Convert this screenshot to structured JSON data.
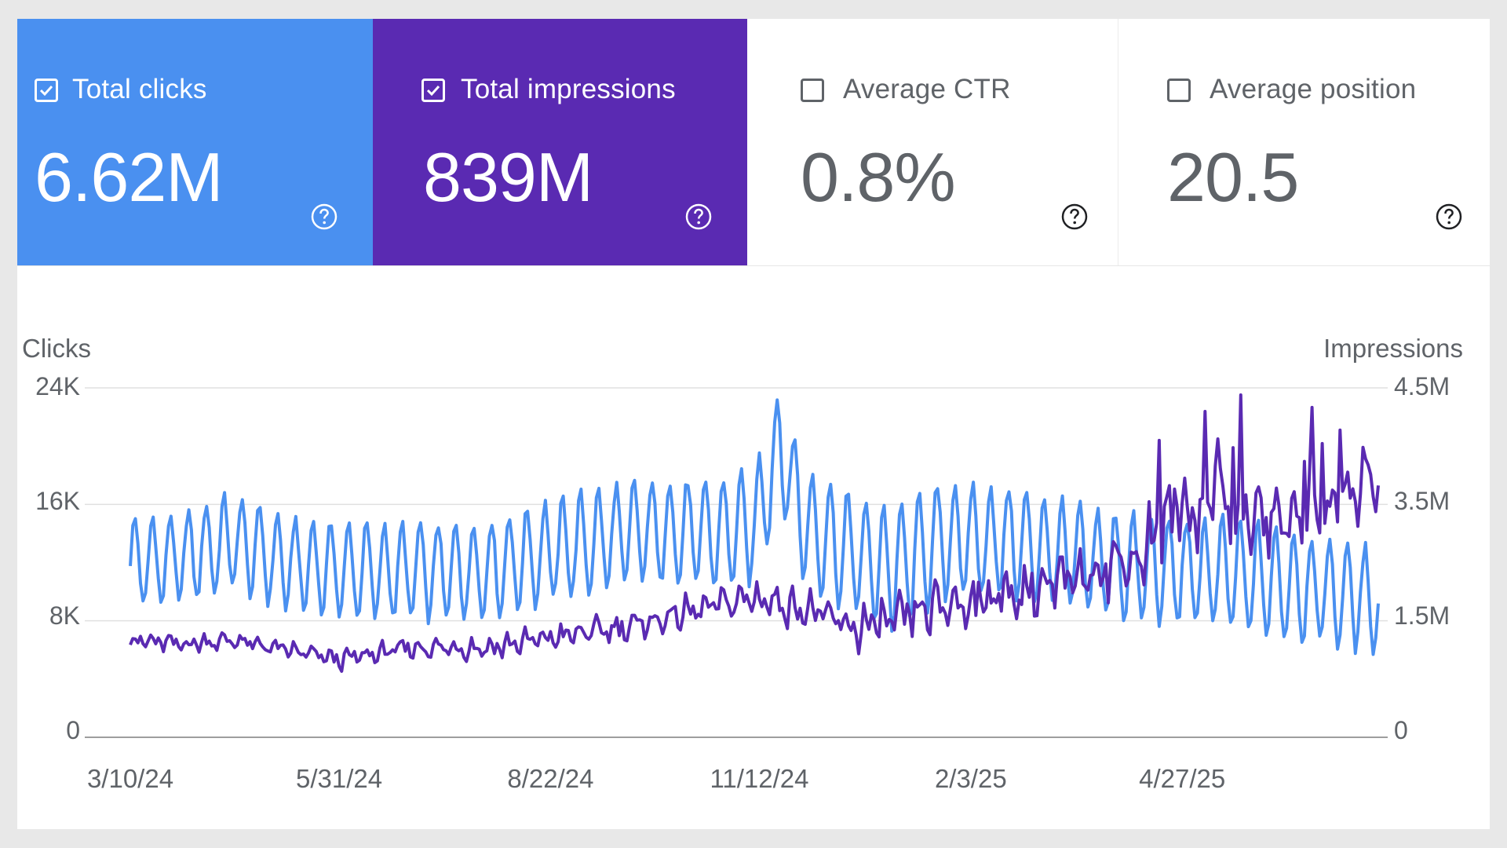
{
  "colors": {
    "clicks": "#4a90f0",
    "impressions": "#5a2ab2",
    "inactive_text": "#5f6368",
    "gridline": "#e0e0e0",
    "baseline": "#9e9e9e"
  },
  "cards": [
    {
      "label": "Total clicks",
      "value": "6.62M",
      "checked": true,
      "icon": "help-icon"
    },
    {
      "label": "Total impressions",
      "value": "839M",
      "checked": true,
      "icon": "help-icon"
    },
    {
      "label": "Average CTR",
      "value": "0.8%",
      "checked": false,
      "icon": "help-icon"
    },
    {
      "label": "Average position",
      "value": "20.5",
      "checked": false,
      "icon": "help-icon"
    }
  ],
  "chart_data": {
    "type": "line",
    "left_axis_title": "Clicks",
    "right_axis_title": "Impressions",
    "left_ticks": [
      "24K",
      "16K",
      "8K",
      "0"
    ],
    "right_ticks": [
      "4.5M",
      "3.5M",
      "1.5M",
      "0"
    ],
    "ylim_left": [
      0,
      24000
    ],
    "ylim_right": [
      0,
      4500000
    ],
    "x_tick_labels": [
      "3/10/24",
      "5/31/24",
      "8/22/24",
      "11/12/24",
      "2/3/25",
      "4/27/25"
    ],
    "x_tick_days": [
      0,
      82,
      165,
      247,
      330,
      413
    ],
    "x_range_days": [
      0,
      490
    ],
    "series": [
      {
        "name": "Clicks",
        "axis": "left",
        "weekly_amplitude": [
          3000,
          3200,
          3200,
          3300,
          3400,
          3500,
          3700,
          3900,
          4200,
          3800,
          3600,
          3600,
          3800,
          3500
        ],
        "trend": [
          [
            0,
            12000
          ],
          [
            20,
            12300
          ],
          [
            40,
            13500
          ],
          [
            60,
            12000
          ],
          [
            82,
            11500
          ],
          [
            110,
            11400
          ],
          [
            140,
            11500
          ],
          [
            165,
            12800
          ],
          [
            200,
            14200
          ],
          [
            230,
            14000
          ],
          [
            245,
            14500
          ],
          [
            255,
            20000
          ],
          [
            265,
            14500
          ],
          [
            285,
            12500
          ],
          [
            300,
            11600
          ],
          [
            320,
            13600
          ],
          [
            345,
            13500
          ],
          [
            365,
            12600
          ],
          [
            395,
            11600
          ],
          [
            430,
            11300
          ],
          [
            460,
            10300
          ],
          [
            490,
            9400
          ]
        ]
      },
      {
        "name": "Impressions",
        "axis": "right",
        "weekly_amplitude": [
          90000,
          90000,
          100000,
          110000,
          130000,
          150000,
          170000,
          200000,
          250000,
          300000,
          350000,
          380000,
          400000,
          450000
        ],
        "trend": [
          [
            0,
            1250000
          ],
          [
            20,
            1200000
          ],
          [
            40,
            1250000
          ],
          [
            82,
            1000000
          ],
          [
            110,
            1150000
          ],
          [
            140,
            1150000
          ],
          [
            165,
            1280000
          ],
          [
            200,
            1450000
          ],
          [
            230,
            1700000
          ],
          [
            245,
            1800000
          ],
          [
            265,
            1650000
          ],
          [
            285,
            1400000
          ],
          [
            300,
            1500000
          ],
          [
            320,
            1700000
          ],
          [
            345,
            1850000
          ],
          [
            365,
            1950000
          ],
          [
            380,
            2200000
          ],
          [
            395,
            2300000
          ],
          [
            410,
            2950000
          ],
          [
            430,
            2900000
          ],
          [
            450,
            2800000
          ],
          [
            470,
            2950000
          ],
          [
            490,
            3350000
          ]
        ]
      }
    ]
  }
}
